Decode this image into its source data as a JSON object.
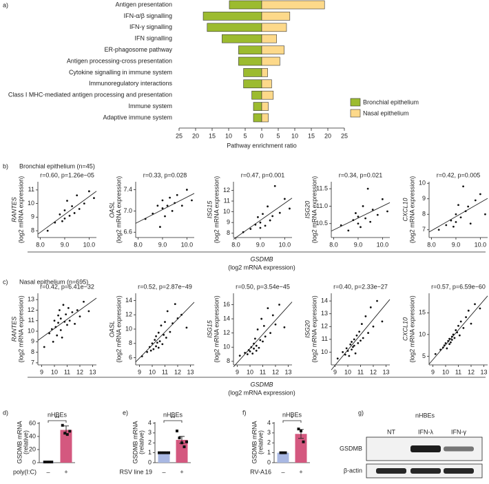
{
  "panel_label": "a)",
  "sections": [
    {
      "label": "b)",
      "title": "Bronchial epithelium (n=45)",
      "xlabel": "GSDMB",
      "xunit": "(log2 mRNA expression)"
    },
    {
      "label": "c)",
      "title": "Nasal epithelium (n=695)",
      "xlabel": "GSDMB",
      "xunit": "(log2 mRNA expression)"
    }
  ],
  "blot": {
    "panel": "g)",
    "title": "nHBEs",
    "lanes": [
      "NT",
      "IFN-λ",
      "IFN-γ"
    ],
    "rows": [
      "GSDMB",
      "β-actin"
    ]
  },
  "chart_data": [
    {
      "type": "bar",
      "orientation": "horizontal",
      "xlabel": "Pathway enrichment ratio",
      "legend": "right",
      "categories": [
        "Antigen presentation",
        "IFN-α/β signalling",
        "IFN-γ signalling",
        "IFN signalling",
        "ER-phagosome pathway",
        "Antigen processing-cross presentation",
        "Cytokine signalling in immune system",
        "Immunoregulatory interactions",
        "Class I MHC-mediated antigen processing and presentation",
        "Immune system",
        "Adaptive immune system"
      ],
      "series": [
        {
          "name": "Bronchial epithelium",
          "color": "#9cbb2f",
          "side": "left",
          "values": [
            9.8,
            17.7,
            16.5,
            12,
            7,
            7,
            5.5,
            5.5,
            3,
            2.5,
            2.5
          ]
        },
        {
          "name": "Nasal epithelium",
          "color": "#fdd98a",
          "side": "right",
          "values": [
            19,
            8.5,
            7.5,
            4.5,
            6.8,
            5.5,
            1.8,
            3,
            3.5,
            2,
            2
          ]
        }
      ],
      "xlim": [
        -25,
        25
      ],
      "xticks": [
        {
          "value": -25,
          "label": "25"
        },
        {
          "value": -20,
          "label": "20"
        },
        {
          "value": -15,
          "label": "15"
        },
        {
          "value": -10,
          "label": "10"
        },
        {
          "value": -5,
          "label": "5"
        },
        0,
        5,
        10,
        15,
        20,
        25
      ]
    },
    {
      "type": "scatter",
      "group": 0,
      "title": "r=0.60, p=1.26e−05",
      "ylabel": "RANTES",
      "yunit": "(log2 mRNA expression)",
      "color": "#111",
      "x": [
        8.3,
        8.6,
        8.8,
        8.9,
        9.0,
        9.0,
        9.1,
        9.2,
        9.3,
        9.4,
        9.5,
        9.6,
        9.8,
        10.0,
        10.2
      ],
      "y": [
        8.0,
        8.6,
        9.2,
        8.7,
        9.5,
        8.9,
        10.2,
        9.1,
        9.8,
        9.3,
        10.6,
        9.6,
        10.0,
        10.9,
        10.4
      ],
      "xlim": [
        7.9,
        10.3
      ],
      "ylim": [
        7.5,
        11.6
      ],
      "xticks": [
        {
          "value": 8,
          "label": "8.0"
        },
        {
          "value": 9,
          "label": "9.0"
        },
        {
          "value": 10,
          "label": "10.0"
        }
      ],
      "yticks": [
        8,
        9,
        10,
        11
      ]
    },
    {
      "type": "scatter",
      "group": 0,
      "title": "r=0.33, p=0.028",
      "ylabel": "OASL",
      "yunit": "(log2 mRNA expression)",
      "color": "#111",
      "x": [
        8.3,
        8.6,
        8.8,
        8.9,
        9.0,
        9.0,
        9.1,
        9.2,
        9.3,
        9.4,
        9.5,
        9.6,
        9.8,
        10.0,
        10.2
      ],
      "y": [
        6.85,
        6.95,
        7.1,
        6.7,
        7.05,
        7.2,
        6.9,
        7.1,
        7.25,
        7.0,
        7.15,
        7.3,
        7.1,
        7.4,
        7.2
      ],
      "xlim": [
        7.9,
        10.3
      ],
      "ylim": [
        6.5,
        7.55
      ],
      "xticks": [
        {
          "value": 8,
          "label": "8.0"
        },
        {
          "value": 9,
          "label": "9.0"
        },
        {
          "value": 10,
          "label": "10.0"
        }
      ],
      "yticks": [
        6.6,
        {
          "value": 7,
          "label": "7.0"
        },
        7.4
      ]
    },
    {
      "type": "scatter",
      "group": 0,
      "title": "r=0.47, p=0.001",
      "ylabel": "ISG15",
      "yunit": "(log2 mRNA expression)",
      "color": "#111",
      "x": [
        8.3,
        8.6,
        8.8,
        8.9,
        9.0,
        9.0,
        9.1,
        9.2,
        9.3,
        9.4,
        9.5,
        9.6,
        9.8,
        10.0,
        10.2
      ],
      "y": [
        8.1,
        8.4,
        8.8,
        9.5,
        8.5,
        9.0,
        9.8,
        8.7,
        10.5,
        9.2,
        9.6,
        12.4,
        9.9,
        11.2,
        10.3
      ],
      "xlim": [
        7.9,
        10.3
      ],
      "ylim": [
        7.6,
        12.8
      ],
      "xticks": [
        {
          "value": 8,
          "label": "8.0"
        },
        {
          "value": 9,
          "label": "9.0"
        },
        {
          "value": 10,
          "label": "10.0"
        }
      ],
      "yticks": [
        8,
        9,
        10,
        11,
        12
      ]
    },
    {
      "type": "scatter",
      "group": 0,
      "title": "r=0.34, p=0.021",
      "ylabel": "ISG20",
      "yunit": "(log2 mRNA expression)",
      "color": "#111",
      "x": [
        8.3,
        8.6,
        8.8,
        8.9,
        9.0,
        9.0,
        9.1,
        9.2,
        9.3,
        9.4,
        9.5,
        9.6,
        9.8,
        10.0,
        10.2
      ],
      "y": [
        10.45,
        10.3,
        10.6,
        10.8,
        10.5,
        10.7,
        10.4,
        11.0,
        10.65,
        11.5,
        10.55,
        10.9,
        10.75,
        11.2,
        10.85
      ],
      "xlim": [
        7.9,
        10.3
      ],
      "ylim": [
        10.1,
        11.7
      ],
      "xticks": [
        {
          "value": 8,
          "label": "8.0"
        },
        {
          "value": 9,
          "label": "9.0"
        },
        {
          "value": 10,
          "label": "10.0"
        }
      ],
      "yticks": [
        10.5,
        {
          "value": 11,
          "label": "11.0"
        },
        11.5
      ]
    },
    {
      "type": "scatter",
      "group": 0,
      "title": "r=0.42, p=0.005",
      "ylabel": "CXCL10",
      "yunit": "(log2 mRNA expression)",
      "color": "#111",
      "x": [
        8.3,
        8.6,
        8.8,
        8.9,
        9.0,
        9.0,
        9.1,
        9.2,
        9.3,
        9.4,
        9.5,
        9.6,
        9.8,
        10.0,
        10.2
      ],
      "y": [
        7.0,
        7.3,
        7.6,
        7.2,
        8.0,
        7.5,
        8.6,
        7.8,
        9.8,
        8.2,
        8.5,
        7.4,
        8.9,
        9.3,
        8.0
      ],
      "xlim": [
        7.9,
        10.3
      ],
      "ylim": [
        6.5,
        10.1
      ],
      "xticks": [
        {
          "value": 8,
          "label": "8.0"
        },
        {
          "value": 9,
          "label": "9.0"
        },
        {
          "value": 10,
          "label": "10.0"
        }
      ],
      "yticks": [
        7,
        8,
        9,
        10
      ]
    },
    {
      "type": "scatter",
      "group": 1,
      "title": "r=0.42, p=6.41e−32",
      "ylabel": "RANTES",
      "yunit": "(log2 mRNA expression)",
      "color": "#111",
      "x": [
        9.2,
        9.6,
        9.8,
        9.9,
        10.0,
        10.1,
        10.2,
        10.3,
        10.3,
        10.4,
        10.5,
        10.5,
        10.6,
        10.7,
        10.8,
        10.9,
        11.0,
        11.1,
        11.2,
        11.4,
        11.6,
        11.8,
        12.0,
        12.3,
        12.7
      ],
      "y": [
        8.5,
        9.8,
        10.2,
        9.0,
        11.0,
        10.4,
        9.6,
        11.5,
        10.8,
        12.0,
        10.1,
        11.2,
        9.4,
        12.5,
        10.9,
        11.6,
        10.6,
        12.2,
        11.0,
        11.8,
        10.7,
        12.0,
        11.4,
        12.8,
        11.9
      ],
      "xlim": [
        8.7,
        13.3
      ],
      "ylim": [
        6.8,
        13.6
      ],
      "xticks": [
        9,
        10,
        11,
        12,
        13
      ],
      "yticks": [
        7,
        8,
        9,
        10,
        11,
        12,
        13
      ]
    },
    {
      "type": "scatter",
      "group": 1,
      "title": "r=0.52, p=2.87e−49",
      "ylabel": "OASL",
      "yunit": "(log2 mRNA expression)",
      "color": "#111",
      "x": [
        9.2,
        9.6,
        9.8,
        9.9,
        10.0,
        10.1,
        10.2,
        10.3,
        10.3,
        10.4,
        10.5,
        10.5,
        10.6,
        10.7,
        10.8,
        10.9,
        11.0,
        11.1,
        11.2,
        11.4,
        11.6,
        11.8,
        12.0,
        12.3,
        12.7
      ],
      "y": [
        6.2,
        6.8,
        7.5,
        7.0,
        8.0,
        7.2,
        8.5,
        7.6,
        9.0,
        8.1,
        7.4,
        9.5,
        8.3,
        10.5,
        7.9,
        9.2,
        11.0,
        8.8,
        12.5,
        9.6,
        10.8,
        13.5,
        11.5,
        12.0,
        10.2
      ],
      "xlim": [
        8.7,
        13.3
      ],
      "ylim": [
        5,
        15
      ],
      "xticks": [
        9,
        10,
        11,
        12,
        13
      ],
      "yticks": [
        6,
        8,
        10,
        12,
        14
      ]
    },
    {
      "type": "scatter",
      "group": 1,
      "title": "r=0.50, p=3.54e−45",
      "ylabel": "ISG15",
      "yunit": "(log2 mRNA expression)",
      "color": "#111",
      "x": [
        9.2,
        9.6,
        9.8,
        9.9,
        10.0,
        10.1,
        10.2,
        10.3,
        10.3,
        10.4,
        10.5,
        10.5,
        10.6,
        10.7,
        10.8,
        10.9,
        11.0,
        11.1,
        11.2,
        11.4,
        11.6,
        11.8,
        12.0,
        12.3,
        12.7
      ],
      "y": [
        8.8,
        9.2,
        9.0,
        9.6,
        9.4,
        10.0,
        9.1,
        10.5,
        9.8,
        11.2,
        9.5,
        10.2,
        12.5,
        9.9,
        11.0,
        14.0,
        10.8,
        13.0,
        11.5,
        15.5,
        12.0,
        14.5,
        13.2,
        16.0,
        12.8
      ],
      "xlim": [
        8.7,
        13.3
      ],
      "ylim": [
        7.5,
        17.6
      ],
      "xticks": [
        9,
        10,
        11,
        12,
        13
      ],
      "yticks": [
        8,
        10,
        12,
        14,
        16
      ]
    },
    {
      "type": "scatter",
      "group": 1,
      "title": "r=0.40, p=2.33e−27",
      "ylabel": "ISG20",
      "yunit": "(log2 mRNA expression)",
      "color": "#111",
      "x": [
        9.2,
        9.6,
        9.8,
        9.9,
        10.0,
        10.1,
        10.2,
        10.3,
        10.3,
        10.4,
        10.5,
        10.5,
        10.6,
        10.7,
        10.8,
        10.9,
        11.0,
        11.1,
        11.2,
        11.4,
        11.6,
        11.8,
        12.0,
        12.3,
        12.7
      ],
      "y": [
        9.5,
        10.0,
        9.8,
        10.3,
        10.1,
        9.7,
        10.6,
        10.2,
        10.8,
        10.4,
        11.0,
        10.5,
        9.9,
        11.3,
        10.7,
        11.6,
        10.9,
        12.2,
        11.1,
        12.8,
        11.5,
        13.5,
        12.0,
        14.0,
        12.4
      ],
      "xlim": [
        8.7,
        13.3
      ],
      "ylim": [
        9,
        14.6
      ],
      "xticks": [
        9,
        10,
        11,
        12,
        13
      ],
      "yticks": [
        10,
        11,
        12,
        13,
        14
      ]
    },
    {
      "type": "scatter",
      "group": 1,
      "title": "r=0.57, p=6.59e−60",
      "ylabel": "CXCL10",
      "yunit": "(log2 mRNA expression)",
      "color": "#111",
      "x": [
        9.2,
        9.6,
        9.8,
        9.9,
        10.0,
        10.1,
        10.2,
        10.3,
        10.3,
        10.4,
        10.5,
        10.5,
        10.6,
        10.7,
        10.8,
        10.9,
        11.0,
        11.1,
        11.2,
        11.4,
        11.6,
        11.8,
        12.0,
        12.3,
        12.7
      ],
      "y": [
        5.5,
        6.5,
        7.0,
        7.5,
        8.0,
        6.8,
        8.5,
        7.8,
        9.0,
        8.2,
        9.5,
        8.8,
        10.0,
        9.2,
        11.0,
        10.5,
        12.0,
        9.8,
        13.0,
        11.5,
        14.0,
        15.5,
        12.5,
        17.0,
        16.0
      ],
      "xlim": [
        8.7,
        13.3
      ],
      "ylim": [
        3,
        19.5
      ],
      "xticks": [
        9,
        10,
        11,
        12,
        13
      ],
      "yticks": [
        5,
        10,
        15
      ]
    },
    {
      "type": "bar",
      "panel": "d)",
      "title": "nHBEs",
      "xlabel": "poly(I:C)",
      "ylabel": "GSDMB mRNA",
      "yunit": "(relative)",
      "significance": "**",
      "categories": [
        "–",
        "+"
      ],
      "values": [
        1,
        50
      ],
      "errors": [
        0,
        6
      ],
      "colors": [
        "#a9b8e3",
        "#d4587f"
      ],
      "points": [
        [
          1,
          1,
          1,
          1
        ],
        [
          57,
          45,
          43,
          48
        ]
      ],
      "ylim": [
        0,
        62
      ],
      "yticks": [
        0,
        20,
        40,
        60
      ]
    },
    {
      "type": "bar",
      "panel": "e)",
      "title": "nHBEs",
      "xlabel": "RSV line 19",
      "ylabel": "GSDMB mRNA",
      "yunit": "(relative)",
      "significance": "**",
      "categories": [
        "–",
        "+"
      ],
      "values": [
        1,
        2.3
      ],
      "errors": [
        0,
        0.35
      ],
      "colors": [
        "#a9b8e3",
        "#d4587f"
      ],
      "points": [
        [
          1,
          1,
          1,
          1,
          1
        ],
        [
          3.2,
          2.5,
          2.0,
          1.6,
          2.1
        ]
      ],
      "ylim": [
        0,
        4.1
      ],
      "yticks": [
        0,
        1,
        2,
        3,
        4
      ]
    },
    {
      "type": "bar",
      "panel": "f)",
      "title": "nHBEs",
      "xlabel": "RV-A16",
      "ylabel": "GSDMB mRNA",
      "yunit": "(relative)",
      "significance": "*",
      "categories": [
        "–",
        "+"
      ],
      "values": [
        1,
        2.9
      ],
      "errors": [
        0,
        0.45
      ],
      "colors": [
        "#a9b8e3",
        "#d4587f"
      ],
      "points": [
        [
          1,
          1,
          1
        ],
        [
          3.4,
          3.2,
          2.1
        ]
      ],
      "ylim": [
        0,
        4.1
      ],
      "yticks": [
        0,
        1,
        2,
        3,
        4
      ]
    }
  ]
}
